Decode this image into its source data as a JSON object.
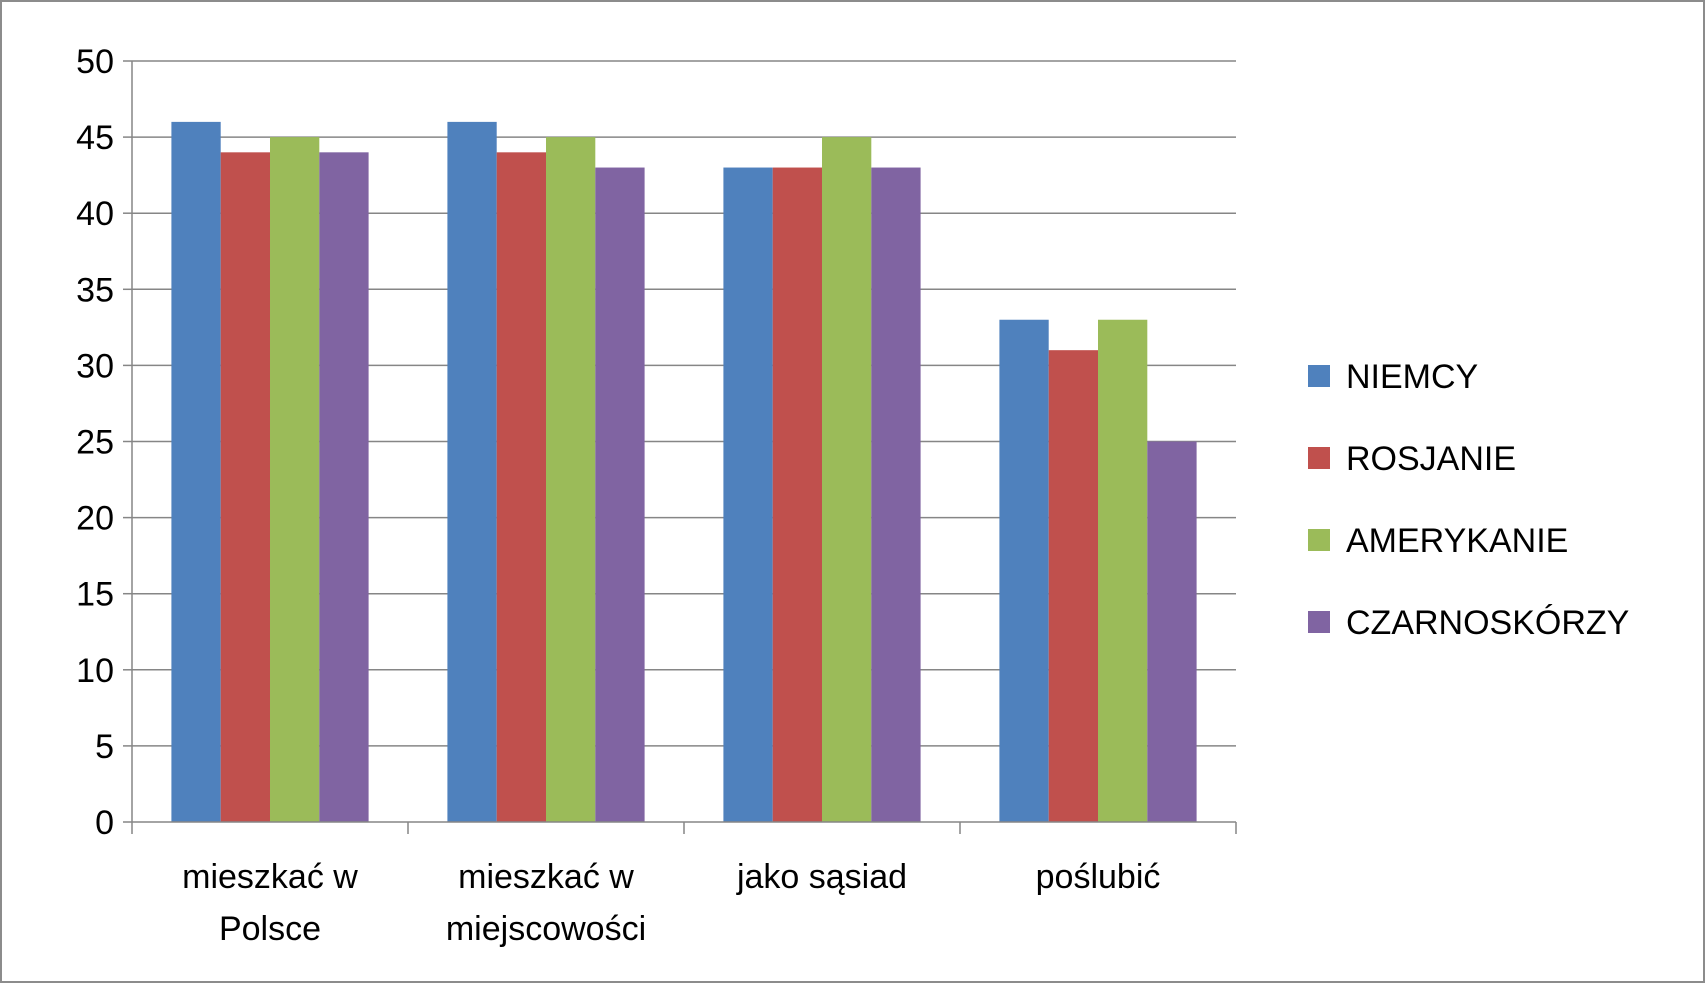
{
  "chart_data": {
    "type": "bar",
    "title": "",
    "xlabel": "",
    "ylabel": "",
    "ylim": [
      0,
      50
    ],
    "yticks": [
      0,
      5,
      10,
      15,
      20,
      25,
      30,
      35,
      40,
      45,
      50
    ],
    "grid": true,
    "legend_position": "right",
    "categories": [
      [
        "mieszkać w",
        "Polsce"
      ],
      [
        "mieszkać w",
        "miejscowości"
      ],
      [
        "jako sąsiad"
      ],
      [
        "poślubić"
      ]
    ],
    "series": [
      {
        "name": "NIEMCY",
        "color": "#4F81BD",
        "values": [
          46,
          46,
          43,
          33
        ]
      },
      {
        "name": "ROSJANIE",
        "color": "#C0504D",
        "values": [
          44,
          44,
          43,
          31
        ]
      },
      {
        "name": "AMERYKANIE",
        "color": "#9BBB59",
        "values": [
          45,
          45,
          45,
          33
        ]
      },
      {
        "name": "CZARNOSKÓRZY",
        "color": "#8064A2",
        "values": [
          44,
          43,
          43,
          25
        ]
      }
    ]
  }
}
